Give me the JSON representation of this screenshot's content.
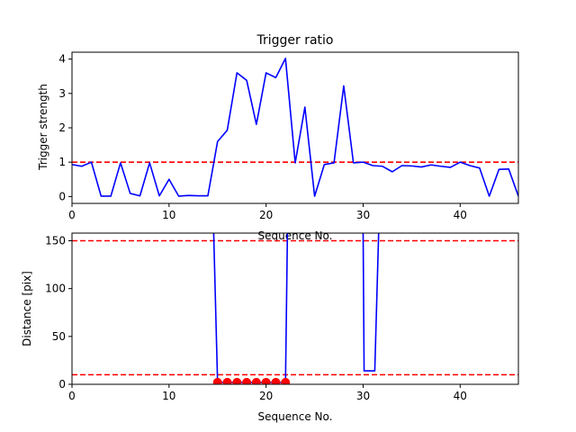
{
  "chart_data": [
    {
      "type": "line",
      "title": "Trigger ratio",
      "xlabel": "Sequence No.",
      "ylabel": "Trigger strength",
      "xlim": [
        0,
        46
      ],
      "ylim": [
        -0.2,
        4.2
      ],
      "xticks": [
        0,
        10,
        20,
        30,
        40
      ],
      "yticks": [
        0,
        1,
        2,
        3,
        4
      ],
      "series": [
        {
          "color": "#0000ff",
          "x": [
            0,
            1,
            2,
            3,
            4,
            5,
            6,
            7,
            8,
            9,
            10,
            11,
            12,
            13,
            14,
            15,
            16,
            17,
            18,
            19,
            20,
            21,
            22,
            23,
            24,
            25,
            26,
            27,
            28,
            29,
            30,
            31,
            32,
            33,
            34,
            35,
            36,
            37,
            38,
            39,
            40,
            41,
            42,
            43,
            44,
            45,
            46
          ],
          "values": [
            0.93,
            0.88,
            1.0,
            0.01,
            0.01,
            0.98,
            0.09,
            0.02,
            0.98,
            0.02,
            0.5,
            0.01,
            0.03,
            0.02,
            0.02,
            1.6,
            1.93,
            3.6,
            3.38,
            2.1,
            3.6,
            3.46,
            4.02,
            0.98,
            2.6,
            0.01,
            0.93,
            0.98,
            3.22,
            0.98,
            1.0,
            0.9,
            0.88,
            0.72,
            0.9,
            0.89,
            0.86,
            0.92,
            0.88,
            0.85,
            1.0,
            0.9,
            0.83,
            0.01,
            0.79,
            0.8,
            0.01
          ]
        }
      ],
      "hlines": [
        {
          "y": 1.0,
          "color": "#ff0000",
          "style": "dashed"
        }
      ]
    },
    {
      "type": "line",
      "title": "",
      "xlabel": "Sequence No.",
      "ylabel": "Distance [pix]",
      "xlim": [
        0,
        46
      ],
      "ylim": [
        0,
        158
      ],
      "xticks": [
        0,
        10,
        20,
        30,
        40
      ],
      "yticks": [
        0,
        50,
        100,
        150
      ],
      "series": [
        {
          "color": "#0000ff",
          "x": [
            14.6,
            15,
            22,
            22.2,
            30,
            30.1,
            31.2,
            31.6
          ],
          "values": [
            158,
            2,
            2,
            158,
            158,
            14,
            14,
            158
          ],
          "breaks_after": [
            3
          ]
        }
      ],
      "markers": {
        "color": "#ff0000",
        "x": [
          15,
          16,
          17,
          18,
          19,
          20,
          21,
          22
        ],
        "values": [
          2,
          2,
          2,
          2,
          2,
          2,
          2,
          2
        ]
      },
      "hlines": [
        {
          "y": 150,
          "color": "#ff0000",
          "style": "dashed"
        },
        {
          "y": 10,
          "color": "#ff0000",
          "style": "dashed"
        }
      ]
    }
  ]
}
